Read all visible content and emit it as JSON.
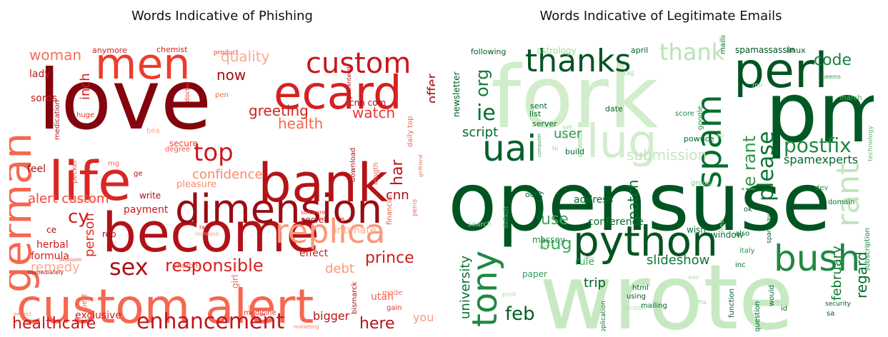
{
  "figure": {
    "left_title": "Words Indicative of Phishing",
    "right_title": "Words Indicative of Legitimate Emails"
  },
  "chart_data": [
    {
      "type": "wordcloud",
      "title": "Words Indicative of Phishing",
      "colormap": "Reds",
      "words": [
        {
          "text": "love",
          "weight": 1.0
        },
        {
          "text": "bank",
          "weight": 0.8
        },
        {
          "text": "become",
          "weight": 0.78
        },
        {
          "text": "custom alert",
          "weight": 0.78
        },
        {
          "text": "life",
          "weight": 0.74
        },
        {
          "text": "ecard",
          "weight": 0.72
        },
        {
          "text": "dimension",
          "weight": 0.68
        },
        {
          "text": "german",
          "weight": 0.64
        },
        {
          "text": "men",
          "weight": 0.62
        },
        {
          "text": "replica",
          "weight": 0.5
        },
        {
          "text": "custom",
          "weight": 0.48
        },
        {
          "text": "enhancement",
          "weight": 0.4
        },
        {
          "text": "top",
          "weight": 0.38
        },
        {
          "text": "sex",
          "weight": 0.35
        },
        {
          "text": "responsible",
          "weight": 0.32
        },
        {
          "text": "healthcare",
          "weight": 0.3
        },
        {
          "text": "prince",
          "weight": 0.3
        },
        {
          "text": "here",
          "weight": 0.3
        },
        {
          "text": "quality",
          "weight": 0.3
        },
        {
          "text": "woman",
          "weight": 0.28
        },
        {
          "text": "cy",
          "weight": 0.28
        },
        {
          "text": "greeting",
          "weight": 0.27
        },
        {
          "text": "remedy",
          "weight": 0.26
        },
        {
          "text": "now",
          "weight": 0.26
        },
        {
          "text": "inch",
          "weight": 0.26
        },
        {
          "text": "har",
          "weight": 0.26
        },
        {
          "text": "confidence",
          "weight": 0.25
        },
        {
          "text": "debt",
          "weight": 0.25
        },
        {
          "text": "watch",
          "weight": 0.25
        },
        {
          "text": "health",
          "weight": 0.24
        },
        {
          "text": "alert custom",
          "weight": 0.24
        },
        {
          "text": "person",
          "weight": 0.24
        },
        {
          "text": "bigger",
          "weight": 0.23
        },
        {
          "text": "cnn",
          "weight": 0.23
        },
        {
          "text": "offer",
          "weight": 0.23
        },
        {
          "text": "you",
          "weight": 0.2
        },
        {
          "text": "intimate",
          "weight": 0.2
        },
        {
          "text": "formula",
          "weight": 0.19
        },
        {
          "text": "exclusive",
          "weight": 0.18
        },
        {
          "text": "payment",
          "weight": 0.17
        },
        {
          "text": "effect",
          "weight": 0.17
        },
        {
          "text": "herbal",
          "weight": 0.17
        },
        {
          "text": "utah",
          "weight": 0.17
        },
        {
          "text": "lady",
          "weight": 0.16
        },
        {
          "text": "soros",
          "weight": 0.16
        },
        {
          "text": "feel",
          "weight": 0.16
        },
        {
          "text": "cnn com",
          "weight": 0.16
        },
        {
          "text": "pleasure",
          "weight": 0.16
        },
        {
          "text": "write",
          "weight": 0.15
        },
        {
          "text": "ce",
          "weight": 0.15
        },
        {
          "text": "secret",
          "weight": 0.14
        },
        {
          "text": "girl",
          "weight": 0.14
        },
        {
          "text": "secure",
          "weight": 0.14
        },
        {
          "text": "rep",
          "weight": 0.13
        },
        {
          "text": "anymore",
          "weight": 0.13
        },
        {
          "text": "chemist",
          "weight": 0.12
        },
        {
          "text": "huge",
          "weight": 0.12
        },
        {
          "text": "medication",
          "weight": 0.12
        },
        {
          "text": "download",
          "weight": 0.12
        },
        {
          "text": "financial",
          "weight": 0.12
        },
        {
          "text": "length",
          "weight": 0.12
        },
        {
          "text": "daily top",
          "weight": 0.12
        },
        {
          "text": "medicine",
          "weight": 0.12
        },
        {
          "text": "pill",
          "weight": 0.12
        },
        {
          "text": "pen",
          "weight": 0.12
        },
        {
          "text": "sharon",
          "weight": 0.11
        },
        {
          "text": "made",
          "weight": 0.11
        },
        {
          "text": "best",
          "weight": 0.11
        },
        {
          "text": "gain",
          "weight": 0.11
        },
        {
          "text": "pecker",
          "weight": 0.11
        },
        {
          "text": "lar",
          "weight": 0.11
        },
        {
          "text": "degree",
          "weight": 0.1
        },
        {
          "text": "doctor",
          "weight": 0.1
        },
        {
          "text": "ge",
          "weight": 0.1
        },
        {
          "text": "product",
          "weight": 0.1
        },
        {
          "text": "guaranteed",
          "weight": 0.09
        },
        {
          "text": "bismarck",
          "weight": 0.09
        },
        {
          "text": "mg",
          "weight": 0.09
        },
        {
          "text": "penis",
          "weight": 0.09
        },
        {
          "text": "software",
          "weight": 0.09
        },
        {
          "text": "rx",
          "weight": 0.08
        },
        {
          "text": "increase",
          "weight": 0.08
        },
        {
          "text": "immediately",
          "weight": 0.08
        },
        {
          "text": "bedroom",
          "weight": 0.08
        },
        {
          "text": "transaction",
          "weight": 0.08
        },
        {
          "text": "girlfriend",
          "weight": 0.08
        },
        {
          "text": "marketing",
          "weight": 0.08
        },
        {
          "text": "perfect",
          "weight": 0.08
        },
        {
          "text": "ad",
          "weight": 0.08
        },
        {
          "text": "bea",
          "weight": 0.08
        }
      ]
    },
    {
      "type": "wordcloud",
      "title": "Words Indicative of Legitimate Emails",
      "colormap": "Greens",
      "words": [
        {
          "text": "opensuse",
          "weight": 1.0
        },
        {
          "text": "wrote",
          "weight": 0.95
        },
        {
          "text": "fork",
          "weight": 0.9
        },
        {
          "text": "pm",
          "weight": 0.78
        },
        {
          "text": "perl",
          "weight": 0.58
        },
        {
          "text": "python",
          "weight": 0.55
        },
        {
          "text": "ilug",
          "weight": 0.52
        },
        {
          "text": "bush",
          "weight": 0.48
        },
        {
          "text": "tony",
          "weight": 0.47
        },
        {
          "text": "uai",
          "weight": 0.46
        },
        {
          "text": "spam",
          "weight": 0.44
        },
        {
          "text": "thanks",
          "weight": 0.42
        },
        {
          "text": "rant",
          "weight": 0.4
        },
        {
          "text": "thank",
          "weight": 0.36
        },
        {
          "text": "ie",
          "weight": 0.34
        },
        {
          "text": "please",
          "weight": 0.34
        },
        {
          "text": "postfix",
          "weight": 0.3
        },
        {
          "text": "feb",
          "weight": 0.3
        },
        {
          "text": "org",
          "weight": 0.28
        },
        {
          "text": "code",
          "weight": 0.27
        },
        {
          "text": "ie rant",
          "weight": 0.26
        },
        {
          "text": "use",
          "weight": 0.26
        },
        {
          "text": "bug",
          "weight": 0.26
        },
        {
          "text": "submission",
          "weight": 0.24
        },
        {
          "text": "patch",
          "weight": 0.24
        },
        {
          "text": "regard",
          "weight": 0.24
        },
        {
          "text": "university",
          "weight": 0.22
        },
        {
          "text": "user",
          "weight": 0.22
        },
        {
          "text": "slideshow",
          "weight": 0.21
        },
        {
          "text": "february",
          "weight": 0.21
        },
        {
          "text": "script",
          "weight": 0.2
        },
        {
          "text": "spamexperts",
          "weight": 0.2
        },
        {
          "text": "trip",
          "weight": 0.2
        },
        {
          "text": "rule",
          "weight": 0.18
        },
        {
          "text": "address",
          "weight": 0.17
        },
        {
          "text": "conference",
          "weight": 0.17
        },
        {
          "text": "newsletter",
          "weight": 0.16
        },
        {
          "text": "massey",
          "weight": 0.16
        },
        {
          "text": "paper",
          "weight": 0.16
        },
        {
          "text": "wish",
          "weight": 0.16
        },
        {
          "text": "window",
          "weight": 0.16
        },
        {
          "text": "astrology",
          "weight": 0.16
        },
        {
          "text": "spamassassin",
          "weight": 0.16
        },
        {
          "text": "following",
          "weight": 0.15
        },
        {
          "text": "sent",
          "weight": 0.15
        },
        {
          "text": "list",
          "weight": 0.15
        },
        {
          "text": "server",
          "weight": 0.15
        },
        {
          "text": "date",
          "weight": 0.15
        },
        {
          "text": "april",
          "weight": 0.15
        },
        {
          "text": "linux",
          "weight": 0.14
        },
        {
          "text": "mailing list",
          "weight": 0.14
        },
        {
          "text": "oct",
          "weight": 0.14
        },
        {
          "text": "tuesday",
          "weight": 0.14
        },
        {
          "text": "pownce",
          "weight": 0.14
        },
        {
          "text": "build",
          "weight": 0.14
        },
        {
          "text": "score",
          "weight": 0.14
        },
        {
          "text": "google",
          "weight": 0.14
        },
        {
          "text": "html",
          "weight": 0.14
        },
        {
          "text": "using",
          "weight": 0.14
        },
        {
          "text": "mailing",
          "weight": 0.14
        },
        {
          "text": "function",
          "weight": 0.14
        },
        {
          "text": "question",
          "weight": 0.13
        },
        {
          "text": "would",
          "weight": 0.13
        },
        {
          "text": "id",
          "weight": 0.13
        },
        {
          "text": "security",
          "weight": 0.13
        },
        {
          "text": "sa",
          "weight": 0.13
        },
        {
          "text": "italy",
          "weight": 0.13
        },
        {
          "text": "also",
          "weight": 0.13
        },
        {
          "text": "inc",
          "weight": 0.13
        },
        {
          "text": "ok",
          "weight": 0.13
        },
        {
          "text": "domain",
          "weight": 0.13
        },
        {
          "text": "dev",
          "weight": 0.12
        },
        {
          "text": "group",
          "weight": 0.12
        },
        {
          "text": "subscription",
          "weight": 0.12
        },
        {
          "text": "spambayes",
          "weight": 0.12
        },
        {
          "text": "technology",
          "weight": 0.12
        },
        {
          "text": "march",
          "weight": 0.12
        },
        {
          "text": "seems",
          "weight": 0.11
        },
        {
          "text": "application",
          "weight": 0.11
        },
        {
          "text": "version",
          "weight": 0.11
        },
        {
          "text": "file",
          "weight": 0.11
        },
        {
          "text": "default",
          "weight": 0.11
        },
        {
          "text": "search",
          "weight": 0.11
        },
        {
          "text": "key",
          "weight": 0.11
        },
        {
          "text": "set",
          "weight": 0.11
        },
        {
          "text": "lib",
          "weight": 0.11
        },
        {
          "text": "tag",
          "weight": 0.11
        },
        {
          "text": "computer",
          "weight": 0.1
        },
        {
          "text": "post",
          "weight": 0.1
        },
        {
          "text": "add",
          "weight": 0.1
        },
        {
          "text": "web",
          "weight": 0.1
        },
        {
          "text": "mp",
          "weight": 0.1
        },
        {
          "text": "hi",
          "weight": 0.1
        },
        {
          "text": "sp",
          "weight": 0.1
        },
        {
          "text": "log",
          "weight": 0.1
        }
      ]
    }
  ]
}
